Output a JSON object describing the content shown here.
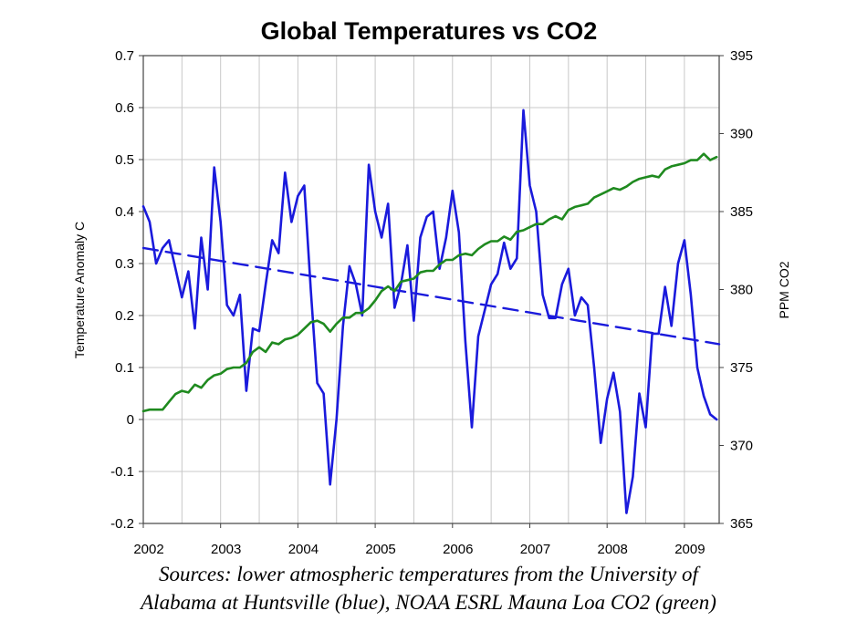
{
  "chart_data": {
    "type": "line",
    "title": "Global Temperatures vs CO2",
    "ylabel": "Temperature Anomaly C",
    "y2label": "PPM CO2",
    "x_ticks": [
      "2002",
      "2003",
      "2004",
      "2005",
      "2006",
      "2007",
      "2008",
      "2009"
    ],
    "xlim": [
      2002.0,
      2009.45
    ],
    "ylim": [
      -0.2,
      0.7
    ],
    "y_ticks": [
      "0.7",
      "0.6",
      "0.5",
      "0.4",
      "0.3",
      "0.2",
      "0.1",
      "0",
      "-0.1",
      "-0.2"
    ],
    "y2lim": [
      365,
      395
    ],
    "y2_ticks": [
      "395",
      "390",
      "385",
      "380",
      "375",
      "370",
      "365"
    ],
    "grid": true,
    "series": [
      {
        "axis": "left",
        "color": "#1a1adc",
        "style": "solid",
        "x": [
          2002.0,
          2002.083,
          2002.167,
          2002.25,
          2002.333,
          2002.417,
          2002.5,
          2002.583,
          2002.667,
          2002.75,
          2002.833,
          2002.917,
          2003.0,
          2003.083,
          2003.167,
          2003.25,
          2003.333,
          2003.417,
          2003.5,
          2003.583,
          2003.667,
          2003.75,
          2003.833,
          2003.917,
          2004.0,
          2004.083,
          2004.167,
          2004.25,
          2004.333,
          2004.417,
          2004.5,
          2004.583,
          2004.667,
          2004.75,
          2004.833,
          2004.917,
          2005.0,
          2005.083,
          2005.167,
          2005.25,
          2005.333,
          2005.417,
          2005.5,
          2005.583,
          2005.667,
          2005.75,
          2005.833,
          2005.917,
          2006.0,
          2006.083,
          2006.167,
          2006.25,
          2006.333,
          2006.417,
          2006.5,
          2006.583,
          2006.667,
          2006.75,
          2006.833,
          2006.917,
          2007.0,
          2007.083,
          2007.167,
          2007.25,
          2007.333,
          2007.417,
          2007.5,
          2007.583,
          2007.667,
          2007.75,
          2007.833,
          2007.917,
          2008.0,
          2008.083,
          2008.167,
          2008.25,
          2008.333,
          2008.417,
          2008.5,
          2008.583,
          2008.667,
          2008.75,
          2008.833,
          2008.917,
          2009.0,
          2009.083,
          2009.167,
          2009.25,
          2009.333,
          2009.417
        ],
        "y": [
          0.41,
          0.38,
          0.3,
          0.33,
          0.345,
          0.29,
          0.235,
          0.285,
          0.175,
          0.35,
          0.25,
          0.485,
          0.38,
          0.22,
          0.2,
          0.24,
          0.055,
          0.175,
          0.17,
          0.26,
          0.345,
          0.32,
          0.475,
          0.38,
          0.43,
          0.45,
          0.25,
          0.07,
          0.05,
          -0.125,
          0.0,
          0.18,
          0.295,
          0.26,
          0.2,
          0.49,
          0.4,
          0.35,
          0.415,
          0.215,
          0.26,
          0.335,
          0.19,
          0.35,
          0.39,
          0.4,
          0.29,
          0.35,
          0.44,
          0.36,
          0.15,
          -0.015,
          0.16,
          0.21,
          0.26,
          0.28,
          0.34,
          0.29,
          0.31,
          0.595,
          0.45,
          0.4,
          0.24,
          0.195,
          0.195,
          0.26,
          0.29,
          0.2,
          0.235,
          0.22,
          0.1,
          -0.045,
          0.04,
          0.09,
          0.015,
          -0.18,
          -0.11,
          0.05,
          -0.015,
          0.165,
          0.165,
          0.255,
          0.18,
          0.3,
          0.345,
          0.24,
          0.1,
          0.045,
          0.01,
          0.0
        ]
      },
      {
        "axis": "left",
        "color": "#1a1adc",
        "style": "dashed",
        "x": [
          2002.0,
          2009.45
        ],
        "y": [
          0.33,
          0.145
        ]
      },
      {
        "axis": "right",
        "color": "#1f8a1f",
        "style": "solid",
        "x": [
          2002.0,
          2002.083,
          2002.167,
          2002.25,
          2002.333,
          2002.417,
          2002.5,
          2002.583,
          2002.667,
          2002.75,
          2002.833,
          2002.917,
          2003.0,
          2003.083,
          2003.167,
          2003.25,
          2003.333,
          2003.417,
          2003.5,
          2003.583,
          2003.667,
          2003.75,
          2003.833,
          2003.917,
          2004.0,
          2004.083,
          2004.167,
          2004.25,
          2004.333,
          2004.417,
          2004.5,
          2004.583,
          2004.667,
          2004.75,
          2004.833,
          2004.917,
          2005.0,
          2005.083,
          2005.167,
          2005.25,
          2005.333,
          2005.417,
          2005.5,
          2005.583,
          2005.667,
          2005.75,
          2005.833,
          2005.917,
          2006.0,
          2006.083,
          2006.167,
          2006.25,
          2006.333,
          2006.417,
          2006.5,
          2006.583,
          2006.667,
          2006.75,
          2006.833,
          2006.917,
          2007.0,
          2007.083,
          2007.167,
          2007.25,
          2007.333,
          2007.417,
          2007.5,
          2007.583,
          2007.667,
          2007.75,
          2007.833,
          2007.917,
          2008.0,
          2008.083,
          2008.167,
          2008.25,
          2008.333,
          2008.417,
          2008.5,
          2008.583,
          2008.667,
          2008.75,
          2008.833,
          2008.917,
          2009.0,
          2009.083,
          2009.167,
          2009.25,
          2009.333,
          2009.417
        ],
        "y": [
          372.2,
          372.3,
          372.3,
          372.3,
          372.8,
          373.3,
          373.5,
          373.4,
          373.9,
          373.7,
          374.2,
          374.5,
          374.6,
          374.9,
          375.0,
          375.0,
          375.3,
          376.0,
          376.3,
          376.0,
          376.6,
          376.5,
          376.8,
          376.9,
          377.1,
          377.5,
          377.9,
          378.0,
          377.8,
          377.3,
          377.8,
          378.2,
          378.2,
          378.5,
          378.5,
          378.8,
          379.3,
          379.9,
          380.2,
          379.9,
          380.5,
          380.6,
          380.7,
          381.1,
          381.2,
          381.2,
          381.6,
          381.9,
          381.9,
          382.2,
          382.3,
          382.2,
          382.6,
          382.9,
          383.1,
          383.1,
          383.4,
          383.2,
          383.7,
          383.8,
          384.0,
          384.2,
          384.2,
          384.5,
          384.7,
          384.5,
          385.1,
          385.3,
          385.4,
          385.5,
          385.9,
          386.1,
          386.3,
          386.5,
          386.4,
          386.6,
          386.9,
          387.1,
          387.2,
          387.3,
          387.2,
          387.7,
          387.9,
          388.0,
          388.1,
          388.3,
          388.3,
          388.7,
          388.3,
          388.5
        ]
      }
    ]
  },
  "caption_lines": [
    "Sources: lower atmospheric temperatures from the University of",
    "Alabama at Huntsville (blue), NOAA ESRL Mauna Loa CO2 (green)"
  ]
}
